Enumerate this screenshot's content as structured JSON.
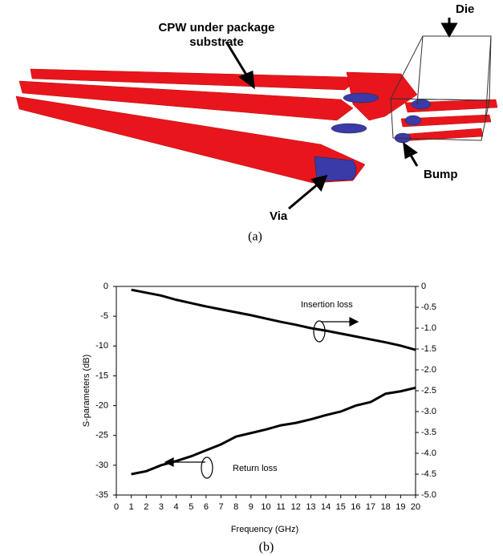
{
  "figure_a": {
    "cpw_label": [
      "CPW under package",
      "substrate"
    ],
    "die_label": "Die",
    "bump_label": "Bump",
    "via_label": "Via",
    "caption": "(a)"
  },
  "chart_data": {
    "type": "line",
    "caption": "(b)",
    "xlabel": "Frequency (GHz)",
    "ylabel": "S-parameters (dB)",
    "x": [
      1,
      2,
      3,
      4,
      5,
      6,
      7,
      8,
      9,
      10,
      11,
      12,
      13,
      14,
      15,
      16,
      17,
      18,
      19,
      20
    ],
    "series": [
      {
        "name": "Insertion loss",
        "color": "#000000",
        "axis": "y2",
        "values": [
          -0.08,
          -0.15,
          -0.22,
          -0.32,
          -0.4,
          -0.48,
          -0.55,
          -0.62,
          -0.69,
          -0.77,
          -0.85,
          -0.92,
          -1.0,
          -1.06,
          -1.13,
          -1.2,
          -1.27,
          -1.34,
          -1.42,
          -1.52
        ]
      },
      {
        "name": "Return loss",
        "color": "#000000",
        "values": [
          -31.5,
          -31,
          -30,
          -29.3,
          -28.5,
          -27.5,
          -26.5,
          -25.2,
          -24.6,
          -24,
          -23.3,
          -22.9,
          -22.3,
          -21.6,
          -21,
          -20,
          -19.4,
          -18,
          -17.6,
          -17
        ]
      }
    ],
    "xlim": [
      0,
      20
    ],
    "xticks": [
      0,
      1,
      2,
      3,
      4,
      5,
      6,
      7,
      8,
      9,
      10,
      11,
      12,
      13,
      14,
      15,
      16,
      17,
      18,
      19,
      20
    ],
    "ylim": [
      -35,
      0
    ],
    "yticks": [
      0,
      -5,
      -10,
      -15,
      -20,
      -25,
      -30,
      -35
    ],
    "y2lim": [
      -5,
      0
    ],
    "y2ticks": [
      0,
      -0.5,
      {
        "value": -1,
        "label": "-1.0"
      },
      -1.5,
      {
        "value": -2,
        "label": "-2.0"
      },
      -2.5,
      {
        "value": -3,
        "label": "-3.0"
      },
      -3.5,
      {
        "value": -4,
        "label": "-4.0"
      },
      -4.5,
      {
        "value": -5,
        "label": "-5.0"
      }
    ]
  }
}
